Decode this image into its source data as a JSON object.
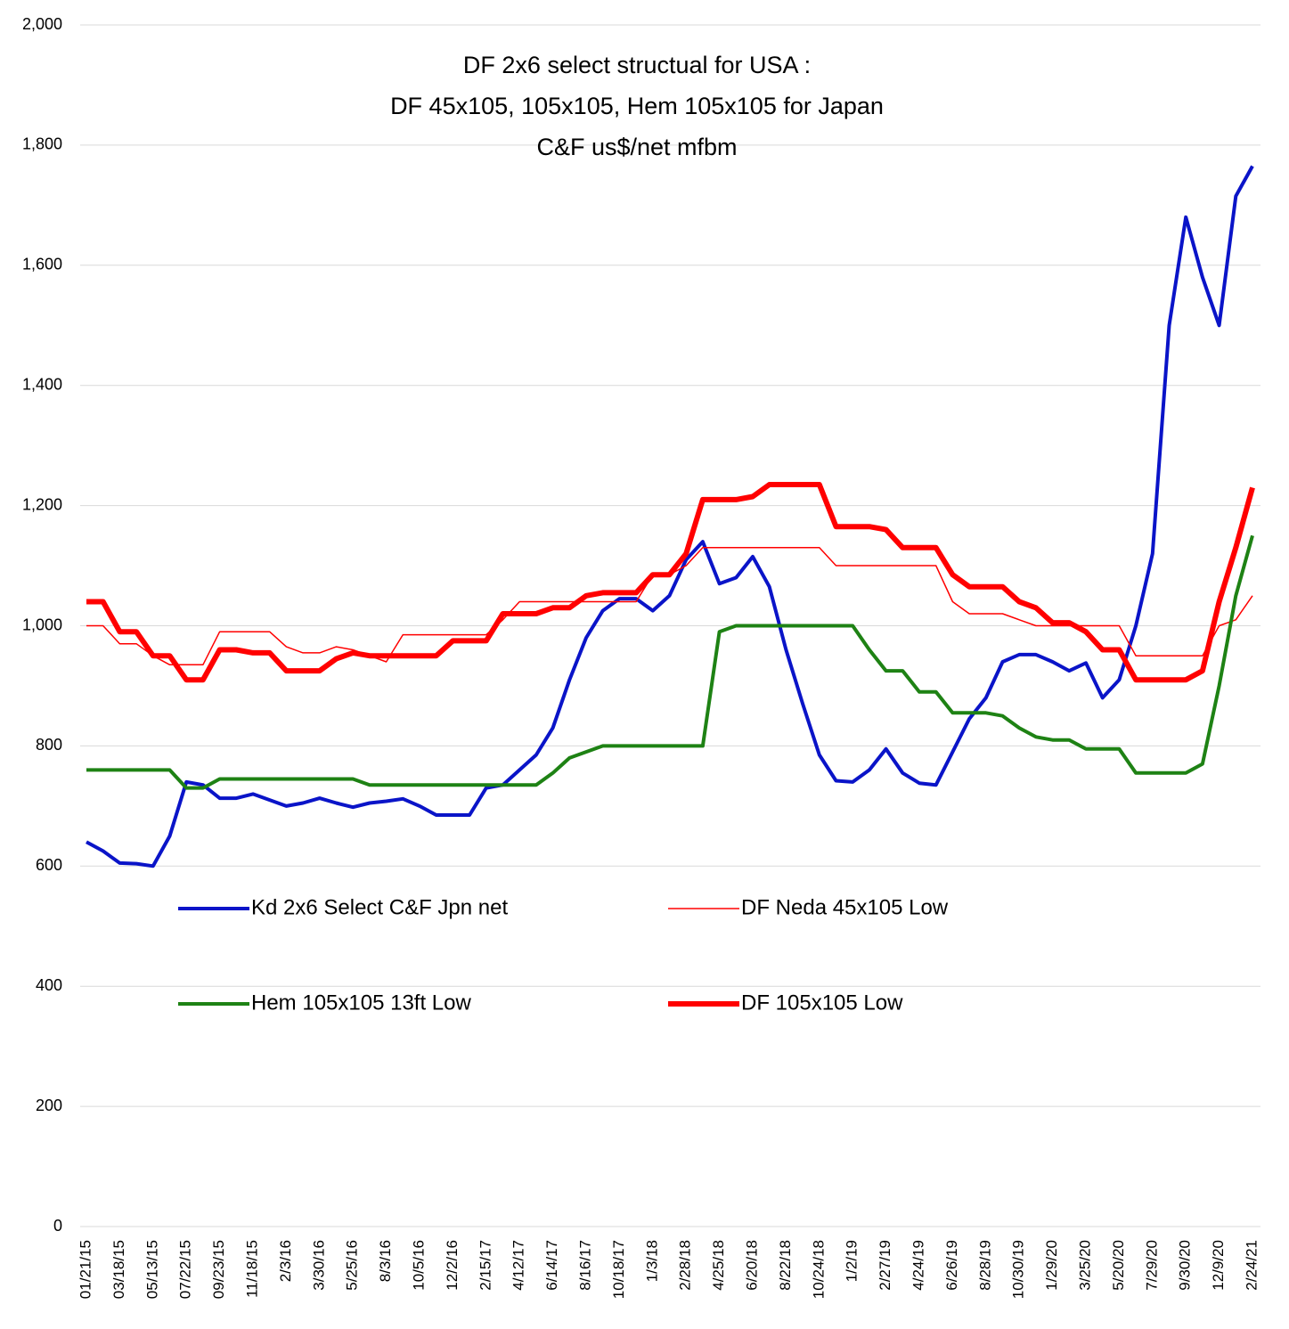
{
  "chart_data": {
    "type": "line",
    "title": [
      "DF 2x6 select structual for USA :",
      "DF 45x105, 105x105, Hem 105x105 for Japan",
      "C&F us$/net mfbm"
    ],
    "categories": [
      "01/21/15",
      null,
      "03/18/15",
      null,
      "05/13/15",
      null,
      "07/22/15",
      null,
      "09/23/15",
      null,
      "11/18/15",
      null,
      "2/3/16",
      null,
      "3/30/16",
      null,
      "5/25/16",
      null,
      "8/3/16",
      null,
      "10/5/16",
      null,
      "12/2/16",
      null,
      "2/15/17",
      null,
      "4/12/17",
      null,
      "6/14/17",
      null,
      "8/16/17",
      null,
      "10/18/17",
      null,
      "1/3/18",
      null,
      "2/28/18",
      null,
      "4/25/18",
      null,
      "6/20/18",
      null,
      "8/22/18",
      null,
      "10/24/18",
      null,
      "1/2/19",
      null,
      "2/27/19",
      null,
      "4/24/19",
      null,
      "6/26/19",
      null,
      "8/28/19",
      null,
      "10/30/19",
      null,
      "1/29/20",
      null,
      "3/25/20",
      null,
      "5/20/20",
      null,
      "7/29/20",
      null,
      "9/30/20",
      null,
      "12/9/20",
      null,
      "2/24/21"
    ],
    "series": [
      {
        "name": "Kd 2x6 Select C&F Jpn net",
        "color": "#0a14c8",
        "line_width": 4,
        "values": [
          640,
          625,
          605,
          604,
          600,
          650,
          740,
          735,
          713,
          713,
          720,
          710,
          700,
          705,
          713,
          705,
          698,
          705,
          708,
          712,
          700,
          685,
          685,
          685,
          730,
          735,
          760,
          785,
          830,
          910,
          980,
          1025,
          1045,
          1045,
          1025,
          1050,
          1110,
          1140,
          1070,
          1080,
          1115,
          1065,
          960,
          870,
          785,
          742,
          740,
          760,
          795,
          755,
          738,
          735,
          790,
          845,
          880,
          940,
          952,
          952,
          940,
          925,
          938,
          880,
          910,
          1000,
          1120,
          1500,
          1680,
          1580,
          1500,
          1715,
          1765
        ]
      },
      {
        "name": "DF Neda 45x105 Low",
        "color": "#ff0000",
        "line_width": 1.5,
        "values": [
          1000,
          1000,
          970,
          970,
          950,
          935,
          935,
          935,
          990,
          990,
          990,
          990,
          965,
          955,
          955,
          965,
          960,
          950,
          940,
          985,
          985,
          985,
          985,
          985,
          985,
          1010,
          1040,
          1040,
          1040,
          1040,
          1040,
          1040,
          1040,
          1040,
          1085,
          1085,
          1100,
          1130,
          1130,
          1130,
          1130,
          1130,
          1130,
          1130,
          1130,
          1100,
          1100,
          1100,
          1100,
          1100,
          1100,
          1100,
          1040,
          1020,
          1020,
          1020,
          1010,
          1000,
          1000,
          1000,
          1000,
          1000,
          1000,
          950,
          950,
          950,
          950,
          950,
          1000,
          1010,
          1050
        ]
      },
      {
        "name": "Hem 105x105 13ft Low",
        "color": "#1e8214",
        "line_width": 4,
        "values": [
          760,
          760,
          760,
          760,
          760,
          760,
          730,
          730,
          745,
          745,
          745,
          745,
          745,
          745,
          745,
          745,
          745,
          735,
          735,
          735,
          735,
          735,
          735,
          735,
          735,
          735,
          735,
          735,
          755,
          780,
          790,
          800,
          800,
          800,
          800,
          800,
          800,
          800,
          990,
          1000,
          1000,
          1000,
          1000,
          1000,
          1000,
          1000,
          1000,
          960,
          925,
          925,
          890,
          890,
          855,
          855,
          855,
          850,
          830,
          815,
          810,
          810,
          795,
          795,
          795,
          755,
          755,
          755,
          755,
          770,
          900,
          1050,
          1150
        ]
      },
      {
        "name": "DF 105x105 Low",
        "color": "#ff0000",
        "line_width": 6,
        "values": [
          1040,
          1040,
          990,
          990,
          950,
          950,
          910,
          910,
          960,
          960,
          955,
          955,
          925,
          925,
          925,
          945,
          955,
          950,
          950,
          950,
          950,
          950,
          975,
          975,
          975,
          1020,
          1020,
          1020,
          1030,
          1030,
          1050,
          1055,
          1055,
          1055,
          1085,
          1085,
          1120,
          1210,
          1210,
          1210,
          1215,
          1235,
          1235,
          1235,
          1235,
          1165,
          1165,
          1165,
          1160,
          1130,
          1130,
          1130,
          1085,
          1065,
          1065,
          1065,
          1040,
          1030,
          1005,
          1005,
          990,
          960,
          960,
          910,
          910,
          910,
          910,
          925,
          1040,
          1130,
          1230
        ]
      }
    ],
    "ylim": [
      0,
      2000
    ],
    "yticks": [
      0,
      200,
      400,
      600,
      800,
      {
        "value": 1000,
        "label": "1,000"
      },
      {
        "value": 1200,
        "label": "1,200"
      },
      {
        "value": 1400,
        "label": "1,400"
      },
      {
        "value": 1600,
        "label": "1,600"
      },
      {
        "value": 1800,
        "label": "1,800"
      },
      {
        "value": 2000,
        "label": "2,000"
      }
    ],
    "grid": true
  }
}
